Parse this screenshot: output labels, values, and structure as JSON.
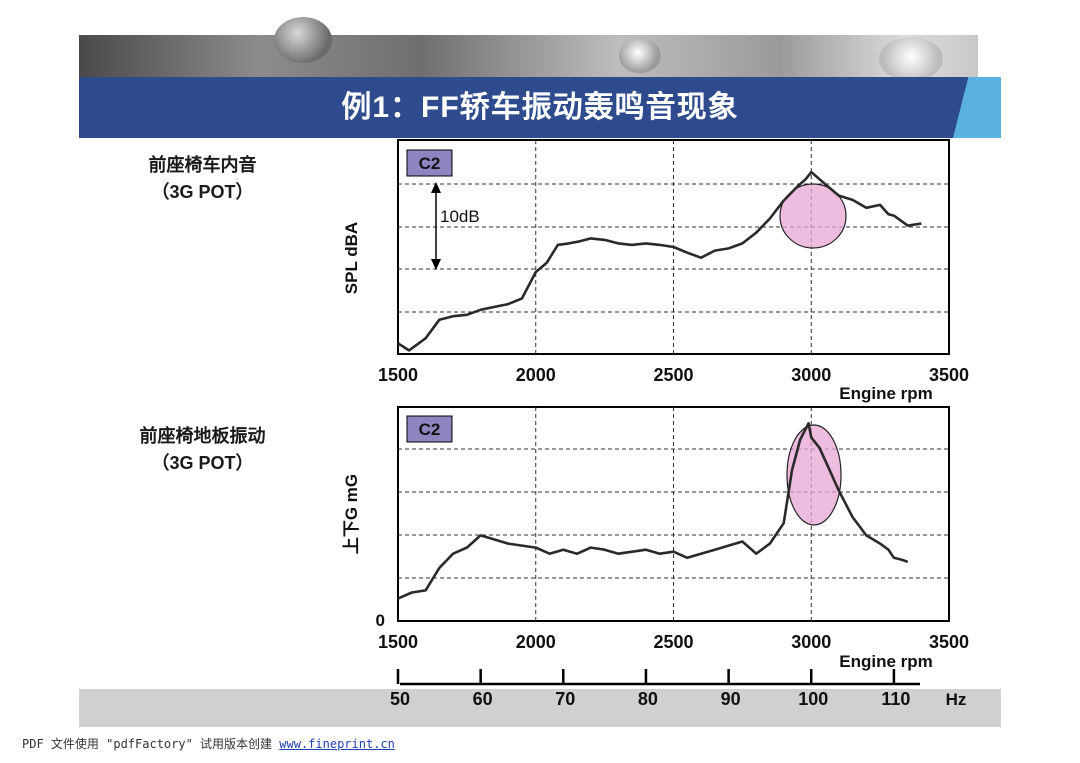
{
  "page_title": "例1：FF轿车振动轰鸣音现象",
  "watermark": {
    "text": "PDF 文件使用 \"pdfFactory\" 试用版本创建",
    "link": "www.fineprint.cn"
  },
  "chart_data": [
    {
      "type": "line",
      "side_label": [
        "前座椅车内音",
        "（3G POT）"
      ],
      "badge": "C2",
      "ylabel": "SPL  dBA",
      "xlabel": "Engine  rpm",
      "xlim": [
        1500,
        3500
      ],
      "xticks": [
        1500,
        2000,
        2500,
        3000,
        3500
      ],
      "scale_annotation": "10dB",
      "highlight": "circle around peak near 3000 rpm",
      "series": [
        {
          "x": [
            1500,
            1540,
            1600,
            1650,
            1700,
            1750,
            1800,
            1850,
            1900,
            1950,
            2000,
            2040,
            2080,
            2120,
            2160,
            2200,
            2250,
            2300,
            2350,
            2400,
            2450,
            2500,
            2550,
            2600,
            2650,
            2700,
            2750,
            2800,
            2850,
            2900,
            2950,
            2980,
            3000,
            3030,
            3060,
            3100,
            3150,
            3200,
            3250,
            3280,
            3300,
            3350,
            3400
          ],
          "y": [
            11.5,
            10.5,
            12.2,
            14.8,
            15.3,
            15.5,
            16.2,
            16.6,
            17.0,
            17.8,
            21.5,
            22.8,
            25.3,
            25.5,
            25.8,
            26.2,
            26.0,
            25.5,
            25.3,
            25.5,
            25.3,
            25.0,
            24.2,
            23.5,
            24.5,
            24.8,
            25.5,
            27.0,
            29.0,
            31.5,
            33.5,
            34.5,
            35.5,
            34.5,
            33.5,
            32.2,
            31.6,
            30.5,
            30.9,
            29.6,
            29.4,
            28.0,
            28.3
          ]
        }
      ]
    },
    {
      "type": "line",
      "side_label": [
        "前座椅地板振动",
        "（3G POT）"
      ],
      "badge": "C2",
      "ylabel": "上下G  mG",
      "xlabel": "Engine  rpm",
      "xlim": [
        1500,
        3500
      ],
      "xticks": [
        1500,
        2000,
        2500,
        3000,
        3500
      ],
      "y_origin_label": "0",
      "highlight": "ellipse around peak near 3000 rpm",
      "secondary_axis": {
        "unit": "Hz",
        "ticks": [
          50,
          60,
          70,
          80,
          90,
          100,
          110
        ]
      },
      "series": [
        {
          "x": [
            1500,
            1550,
            1600,
            1650,
            1700,
            1750,
            1800,
            1850,
            1900,
            1950,
            2000,
            2050,
            2100,
            2150,
            2200,
            2250,
            2300,
            2350,
            2400,
            2450,
            2500,
            2550,
            2600,
            2650,
            2700,
            2750,
            2800,
            2850,
            2900,
            2930,
            2960,
            2990,
            3000,
            3030,
            3060,
            3100,
            3150,
            3200,
            3250,
            3280,
            3300,
            3330,
            3350
          ],
          "y": [
            1.1,
            1.4,
            1.5,
            2.6,
            3.3,
            3.6,
            4.2,
            4.0,
            3.8,
            3.7,
            3.6,
            3.3,
            3.5,
            3.3,
            3.6,
            3.5,
            3.3,
            3.4,
            3.5,
            3.3,
            3.4,
            3.1,
            3.3,
            3.5,
            3.7,
            3.9,
            3.3,
            3.8,
            4.8,
            7.4,
            8.9,
            9.7,
            9.0,
            8.5,
            7.6,
            6.4,
            5.1,
            4.2,
            3.8,
            3.5,
            3.1,
            3.0,
            2.9
          ]
        }
      ]
    }
  ]
}
